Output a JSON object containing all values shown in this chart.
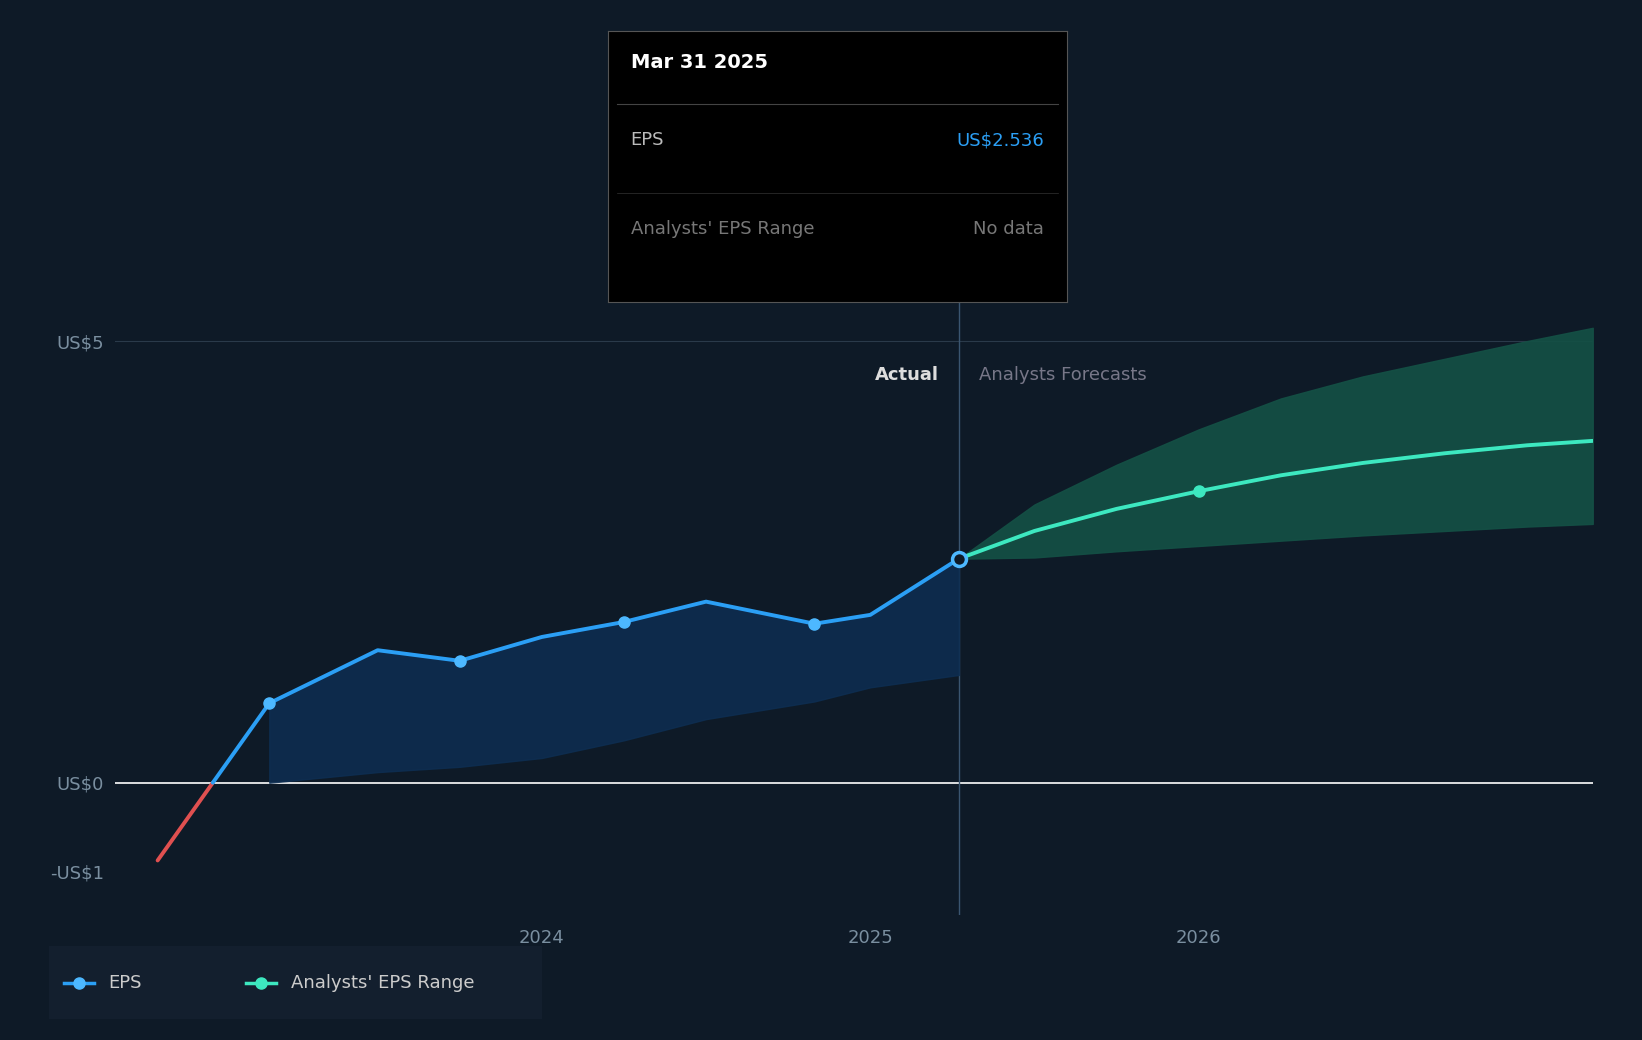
{
  "bg_color": "#0e1a27",
  "plot_bg_color": "#0e1a27",
  "panel_color": "#131f2e",
  "zero_line_color": "#ffffff",
  "grid_color": "#2a3a4a",
  "axis_label_color": "#7a8fa0",
  "actual_label_color": "#dddddd",
  "forecast_label_color": "#777788",
  "eps_line_color": "#2b9ff5",
  "eps_dot_color": "#4db8ff",
  "neg_eps_color": "#e05050",
  "forecast_line_color": "#3de8c0",
  "forecast_fill_color": "#145045",
  "actual_fill_color": "#0d2e52",
  "tooltip_bg": "#000000",
  "tooltip_border": "#555555",
  "tooltip_title_color": "#ffffff",
  "tooltip_eps_label_color": "#bbbbbb",
  "tooltip_eps_color": "#2b9ff5",
  "tooltip_nodata_color": "#777777",
  "ylim": [
    -1.5,
    5.8
  ],
  "xlim_start": 2022.7,
  "xlim_end": 2027.2,
  "divide_x": 2025.27,
  "eps_x": [
    2022.83,
    2023.17,
    2023.5,
    2023.75,
    2024.0,
    2024.25,
    2024.5,
    2024.83,
    2025.0,
    2025.27
  ],
  "eps_y": [
    -0.88,
    0.9,
    1.5,
    1.38,
    1.65,
    1.82,
    2.05,
    1.8,
    1.9,
    2.536
  ],
  "forecast_x": [
    2025.27,
    2025.5,
    2025.75,
    2026.0,
    2026.25,
    2026.5,
    2026.75,
    2027.0,
    2027.2
  ],
  "forecast_y": [
    2.536,
    2.85,
    3.1,
    3.3,
    3.48,
    3.62,
    3.73,
    3.82,
    3.87
  ],
  "forecast_upper": [
    2.536,
    3.15,
    3.6,
    4.0,
    4.35,
    4.6,
    4.8,
    5.0,
    5.15
  ],
  "forecast_lower": [
    2.536,
    2.55,
    2.62,
    2.68,
    2.74,
    2.8,
    2.85,
    2.9,
    2.93
  ],
  "actual_fill_upper_y": [
    -0.88,
    0.9,
    1.5,
    1.38,
    1.65,
    1.82,
    2.05,
    1.8,
    1.9,
    2.536
  ],
  "actual_fill_lower_y": [
    0.0,
    0.0,
    0.12,
    0.18,
    0.28,
    0.48,
    0.72,
    0.92,
    1.08,
    1.22
  ],
  "dot_indices_eps": [
    1,
    3,
    5,
    7,
    9
  ],
  "forecast_dot_idx": 3,
  "tooltip_date": "Mar 31 2025",
  "tooltip_eps_val": "US$2.536",
  "tooltip_range_val": "No data",
  "y_ticks": [
    -1,
    0,
    5
  ],
  "y_tick_labels": [
    "-US$1",
    "US$0",
    "US$5"
  ],
  "x_ticks": [
    2024.0,
    2025.0,
    2026.0
  ],
  "x_tick_labels": [
    "2024",
    "2025",
    "2026"
  ],
  "actual_label": "Actual",
  "forecast_label": "Analysts Forecasts",
  "legend_eps_label": "EPS",
  "legend_range_label": "Analysts' EPS Range"
}
